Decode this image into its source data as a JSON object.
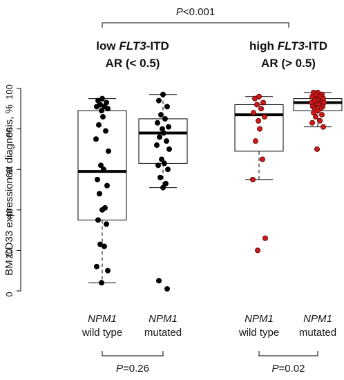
{
  "chart_data": {
    "type": "box",
    "ylabel": "BM CD33 expression at diagnosis, %",
    "ylim": [
      0,
      100
    ],
    "yticks": [
      0,
      20,
      40,
      60,
      80,
      100
    ],
    "y_tick_labels": [
      "0",
      "20",
      "40",
      "60",
      "80",
      "100"
    ],
    "groups": [
      {
        "title_pre": "low ",
        "title_italic": "FLT3",
        "title_post": "-ITD",
        "subtitle": "AR (< 0.5)",
        "boxes": [
          {
            "label_italic": "NPM1",
            "label_sub": "wild type",
            "whisker_low": 4,
            "q1": 35,
            "median": 59,
            "q3": 89,
            "whisker_high": 95,
            "points": [
              95,
              94,
              93,
              92,
              91,
              91,
              90,
              89,
              86,
              82,
              79,
              75,
              69,
              62,
              60,
              55,
              52,
              48,
              41,
              40,
              35,
              33,
              23,
              22,
              12,
              10,
              4
            ]
          },
          {
            "label_italic": "NPM1",
            "label_sub": "mutated",
            "whisker_low": 51,
            "q1": 63,
            "median": 78,
            "q3": 85,
            "whisker_high": 97,
            "points": [
              97,
              94,
              91,
              87,
              85,
              83,
              81,
              80,
              78,
              76,
              74,
              72,
              70,
              65,
              63,
              62,
              60,
              56,
              53,
              51,
              5,
              1
            ]
          }
        ],
        "test": {
          "p_prefix": "P",
          "p_rest": "=0.26"
        }
      },
      {
        "title_pre": "high ",
        "title_italic": "FLT3",
        "title_post": "-ITD",
        "subtitle": "AR (> 0.5)",
        "boxes": [
          {
            "label_italic": "NPM1",
            "label_sub": "wild type",
            "whisker_low": 55,
            "q1": 69,
            "median": 87,
            "q3": 92,
            "whisker_high": 96,
            "points": [
              96,
              95,
              93,
              92,
              90,
              88,
              86,
              84,
              80,
              74,
              65,
              55,
              26,
              20
            ]
          },
          {
            "label_italic": "NPM1",
            "label_sub": "mutated",
            "whisker_low": 81,
            "q1": 89,
            "median": 93,
            "q3": 95,
            "whisker_high": 98,
            "points": [
              98,
              98,
              97,
              97,
              96,
              96,
              95,
              95,
              94,
              94,
              93,
              93,
              93,
              92,
              92,
              91,
              91,
              90,
              90,
              89,
              88,
              87,
              86,
              84,
              83,
              81,
              70
            ]
          }
        ],
        "test": {
          "p_prefix": "P",
          "p_rest": "=0.02"
        }
      }
    ],
    "overall_test": {
      "p_prefix": "P",
      "p_rest": "<0.001"
    },
    "colors": {
      "group1_points": "#000000",
      "group2_points": "#cc1a1a",
      "group2_outline": "#5a0000"
    }
  }
}
